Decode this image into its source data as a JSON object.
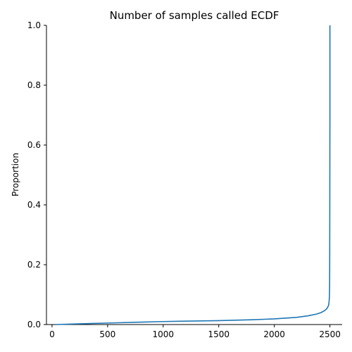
{
  "chart_data": {
    "type": "line",
    "title": "Number of samples called ECDF",
    "xlabel": "",
    "ylabel": "Proportion",
    "xlim": [
      -50,
      2610
    ],
    "ylim": [
      0.0,
      1.0
    ],
    "xticks": [
      0,
      500,
      1000,
      1500,
      2000,
      2500
    ],
    "yticks": [
      0.0,
      0.2,
      0.4,
      0.6,
      0.8,
      1.0
    ],
    "xtick_labels": [
      "0",
      "500",
      "1000",
      "1500",
      "2000",
      "2500"
    ],
    "ytick_labels": [
      "0.0",
      "0.2",
      "0.4",
      "0.6",
      "0.8",
      "1.0"
    ],
    "grid": false,
    "spines": [
      "left",
      "bottom"
    ],
    "color": "#1f77b4",
    "series": [
      {
        "x": [
          30,
          200,
          500,
          800,
          1000,
          1300,
          1500,
          1800,
          2000,
          2200,
          2300,
          2380,
          2420,
          2450,
          2470,
          2480,
          2488,
          2492,
          2495,
          2497,
          2498,
          2499,
          2500,
          2500
        ],
        "y": [
          0.0,
          0.002,
          0.005,
          0.008,
          0.01,
          0.012,
          0.013,
          0.016,
          0.019,
          0.024,
          0.029,
          0.035,
          0.04,
          0.046,
          0.052,
          0.058,
          0.064,
          0.075,
          0.09,
          0.12,
          0.2,
          0.4,
          0.7,
          1.0
        ]
      }
    ]
  }
}
